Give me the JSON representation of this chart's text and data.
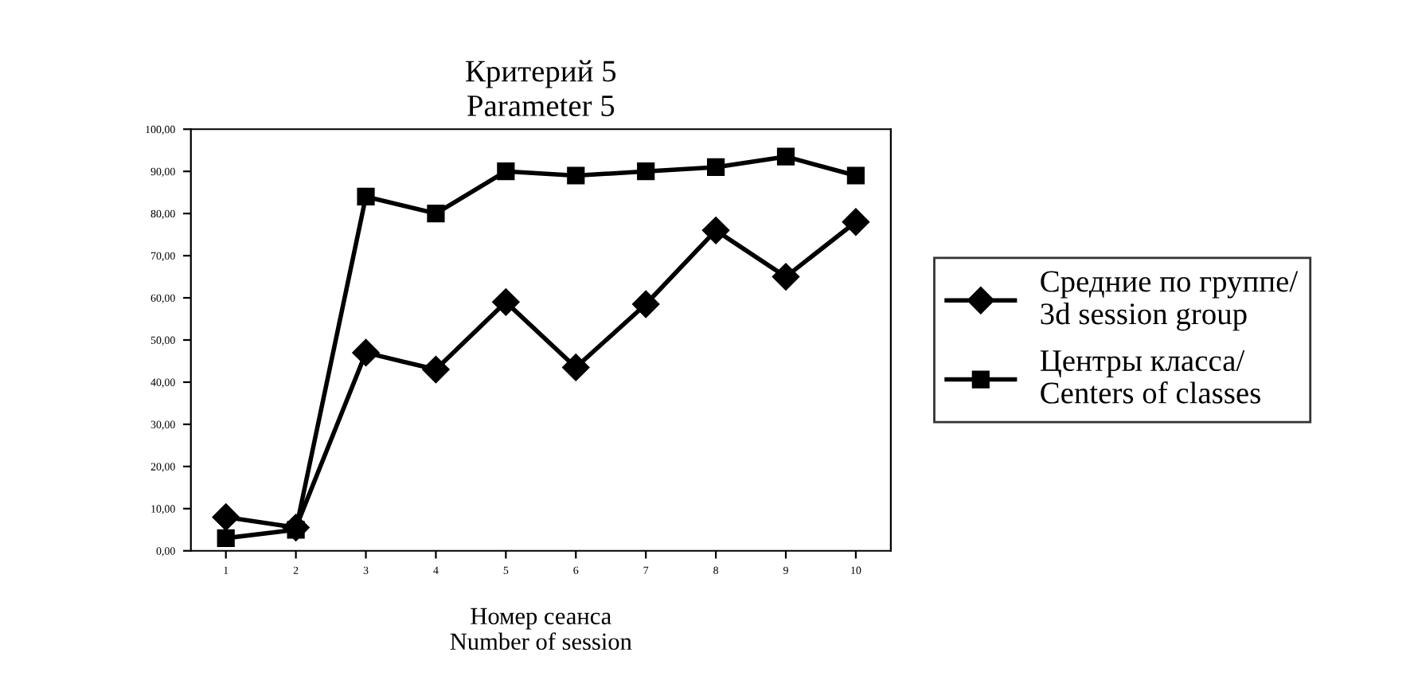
{
  "chart_data": {
    "type": "line",
    "title": "Критерий 5\nParameter 5",
    "xlabel": "Номер сеанса\nNumber of session",
    "categories": [
      "1",
      "2",
      "3",
      "4",
      "5",
      "6",
      "7",
      "8",
      "9",
      "10"
    ],
    "series": [
      {
        "name": "Средние по группе/\n3d session group",
        "color": "#000000",
        "marker": "diamond",
        "values": [
          8,
          5.5,
          47,
          43,
          59,
          43.5,
          58.5,
          76,
          65,
          78
        ]
      },
      {
        "name": "Центры класса/\nCenters of classes",
        "color": "#000000",
        "marker": "square",
        "values": [
          3,
          5,
          84,
          80,
          90,
          89,
          90,
          91,
          93.5,
          89
        ]
      }
    ],
    "ylim": [
      0,
      100
    ],
    "yticks": [
      {
        "value": 0,
        "label": "0,00"
      },
      {
        "value": 10,
        "label": "10,00"
      },
      {
        "value": 20,
        "label": "20,00"
      },
      {
        "value": 30,
        "label": "30,00"
      },
      {
        "value": 40,
        "label": "40,00"
      },
      {
        "value": 50,
        "label": "50,00"
      },
      {
        "value": 60,
        "label": "60,00"
      },
      {
        "value": 70,
        "label": "70,00"
      },
      {
        "value": 80,
        "label": "80,00"
      },
      {
        "value": 90,
        "label": "90,00"
      },
      {
        "value": 100,
        "label": "100,00"
      }
    ],
    "grid": false,
    "legend": "right",
    "line_style": "solid"
  }
}
